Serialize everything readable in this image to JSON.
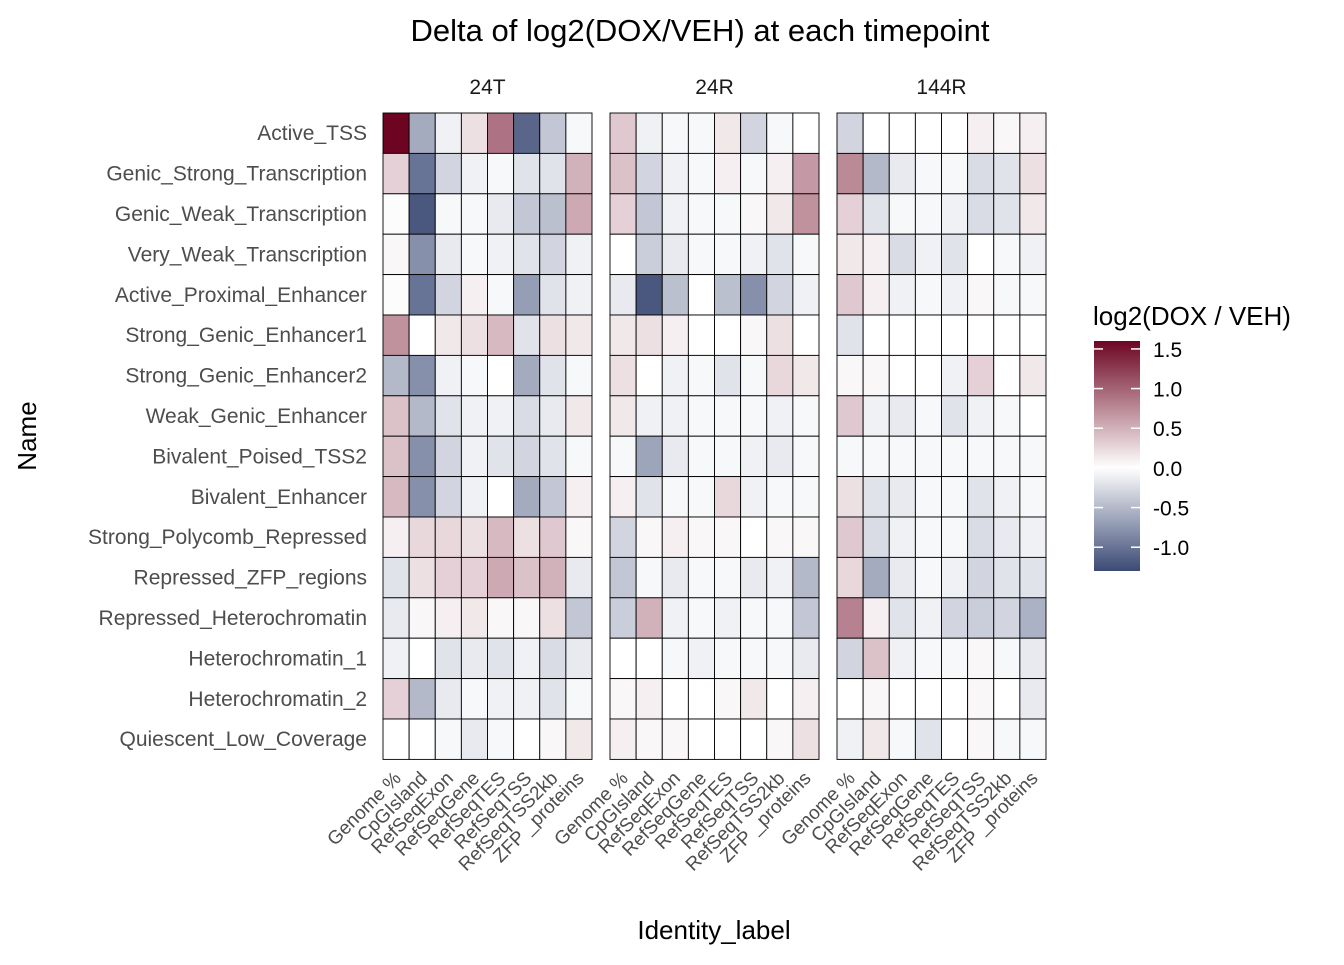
{
  "chart_data": {
    "type": "heatmap",
    "title": "Delta of log2(DOX/VEH) at each timepoint",
    "xlabel": "Identity_label",
    "ylabel": "Name",
    "legend": {
      "title": "log2(DOX / VEH)",
      "position": "right",
      "ticks": [
        1.5,
        1.0,
        0.5,
        0.0,
        -0.5,
        -1.0
      ],
      "tick_labels": [
        "1.5",
        "1.0",
        "0.5",
        "0.0",
        "-0.5",
        "-1.0"
      ],
      "range": [
        -1.3,
        1.6
      ]
    },
    "colors": {
      "low": "#3b4a75",
      "mid": "#ffffff",
      "high": "#6d0522"
    },
    "facets": [
      "24T",
      "24R",
      "144R"
    ],
    "x_categories": [
      "Genome %",
      "CpGIsland",
      "RefSeqExon",
      "RefSeqGene",
      "RefSeqTES",
      "RefSeqTSS",
      "RefSeqTSS2kb",
      "ZFP _proteins"
    ],
    "y_categories": [
      "Active_TSS",
      "Genic_Strong_Transcription",
      "Genic_Weak_Transcription",
      "Very_Weak_Transcription",
      "Active_Proximal_Enhancer",
      "Strong_Genic_Enhancer1",
      "Strong_Genic_Enhancer2",
      "Weak_Genic_Enhancer",
      "Bivalent_Poised_TSS2",
      "Bivalent_Enhancer",
      "Strong_Polycomb_Repressed",
      "Repressed_ZFP_regions",
      "Repressed_Heterochromatin",
      "Heterochromatin_1",
      "Heterochromatin_2",
      "Quiescent_Low_Coverage"
    ],
    "values": {
      "24T": [
        [
          1.6,
          -0.6,
          -0.1,
          0.2,
          0.9,
          -1.1,
          -0.4,
          -0.05
        ],
        [
          0.3,
          -1.0,
          -0.3,
          -0.1,
          -0.05,
          -0.2,
          -0.2,
          0.5
        ],
        [
          0.02,
          -1.2,
          -0.05,
          -0.05,
          -0.15,
          -0.4,
          -0.45,
          0.55
        ],
        [
          0.05,
          -0.8,
          -0.15,
          -0.05,
          -0.1,
          -0.2,
          -0.3,
          -0.1
        ],
        [
          0.02,
          -1.0,
          -0.3,
          0.1,
          -0.05,
          -0.7,
          -0.2,
          -0.1
        ],
        [
          0.7,
          0.0,
          0.15,
          0.2,
          0.45,
          -0.2,
          0.2,
          0.15
        ],
        [
          -0.5,
          -0.8,
          -0.1,
          -0.05,
          0.0,
          -0.6,
          -0.2,
          -0.05
        ],
        [
          0.4,
          -0.5,
          -0.2,
          -0.1,
          -0.1,
          -0.25,
          -0.15,
          0.15
        ],
        [
          0.4,
          -0.8,
          -0.3,
          -0.1,
          -0.2,
          -0.3,
          -0.2,
          -0.05
        ],
        [
          0.45,
          -0.8,
          -0.3,
          -0.1,
          0.0,
          -0.6,
          -0.4,
          0.1
        ],
        [
          0.1,
          0.25,
          0.25,
          0.2,
          0.45,
          0.2,
          0.35,
          0.05
        ],
        [
          -0.2,
          0.2,
          0.3,
          0.3,
          0.55,
          0.4,
          0.5,
          -0.15
        ],
        [
          -0.15,
          0.05,
          0.1,
          0.15,
          0.05,
          0.05,
          0.2,
          -0.4
        ],
        [
          -0.1,
          0.0,
          -0.2,
          -0.15,
          -0.2,
          -0.1,
          -0.25,
          -0.15
        ],
        [
          0.3,
          -0.5,
          -0.15,
          -0.05,
          -0.1,
          -0.1,
          -0.2,
          -0.05
        ],
        [
          0.0,
          0.0,
          -0.05,
          -0.15,
          -0.05,
          0.0,
          0.05,
          0.15
        ]
      ],
      "24R": [
        [
          0.35,
          -0.1,
          -0.05,
          -0.05,
          0.15,
          -0.3,
          -0.05,
          0.0
        ],
        [
          0.4,
          -0.3,
          -0.1,
          -0.05,
          0.1,
          -0.05,
          0.1,
          0.65
        ],
        [
          0.3,
          -0.4,
          -0.1,
          -0.05,
          -0.05,
          0.05,
          0.15,
          0.7
        ],
        [
          0.0,
          -0.35,
          -0.15,
          -0.05,
          -0.05,
          -0.1,
          -0.2,
          -0.05
        ],
        [
          -0.15,
          -1.2,
          -0.45,
          0.0,
          -0.45,
          -0.8,
          -0.3,
          -0.1
        ],
        [
          0.15,
          0.2,
          0.1,
          0.0,
          0.0,
          0.05,
          0.2,
          0.0
        ],
        [
          0.2,
          0.0,
          -0.1,
          -0.05,
          -0.2,
          -0.05,
          0.25,
          0.15
        ],
        [
          0.15,
          -0.1,
          -0.1,
          -0.05,
          -0.05,
          -0.05,
          -0.1,
          -0.05
        ],
        [
          -0.05,
          -0.65,
          -0.15,
          -0.05,
          -0.05,
          -0.1,
          -0.15,
          -0.05
        ],
        [
          0.1,
          -0.2,
          -0.05,
          -0.05,
          0.25,
          -0.1,
          -0.05,
          -0.05
        ],
        [
          -0.3,
          0.05,
          0.1,
          0.05,
          0.05,
          0.0,
          0.05,
          0.05
        ],
        [
          -0.4,
          -0.05,
          -0.15,
          -0.05,
          -0.05,
          -0.15,
          -0.1,
          -0.5
        ],
        [
          -0.35,
          0.5,
          -0.1,
          -0.05,
          -0.1,
          -0.05,
          -0.05,
          -0.4
        ],
        [
          0.0,
          0.0,
          -0.05,
          -0.1,
          -0.05,
          -0.05,
          -0.05,
          -0.15
        ],
        [
          0.05,
          0.1,
          0.0,
          0.0,
          0.05,
          0.15,
          0.0,
          0.1
        ],
        [
          0.1,
          0.05,
          0.05,
          0.0,
          0.0,
          0.0,
          0.05,
          0.2
        ]
      ],
      "144R": [
        [
          -0.3,
          0.0,
          0.0,
          0.0,
          0.0,
          0.1,
          0.05,
          0.1
        ],
        [
          0.75,
          -0.5,
          -0.15,
          -0.05,
          -0.05,
          -0.25,
          -0.2,
          0.2
        ],
        [
          0.3,
          -0.2,
          -0.05,
          -0.05,
          -0.1,
          -0.25,
          -0.2,
          0.15
        ],
        [
          0.15,
          0.1,
          -0.25,
          -0.1,
          -0.2,
          0.0,
          -0.05,
          -0.1
        ],
        [
          0.35,
          0.1,
          -0.1,
          -0.05,
          -0.1,
          0.05,
          -0.05,
          -0.05
        ],
        [
          -0.2,
          0.0,
          0.0,
          0.0,
          0.0,
          0.0,
          0.0,
          0.0
        ],
        [
          0.05,
          0.05,
          0.0,
          0.0,
          -0.1,
          0.3,
          0.0,
          0.15
        ],
        [
          0.35,
          -0.1,
          -0.15,
          -0.05,
          -0.2,
          -0.1,
          -0.05,
          0.0
        ],
        [
          -0.05,
          -0.05,
          -0.05,
          -0.05,
          -0.05,
          -0.05,
          -0.05,
          -0.05
        ],
        [
          0.2,
          -0.2,
          -0.15,
          -0.05,
          -0.05,
          -0.2,
          -0.1,
          -0.05
        ],
        [
          0.35,
          -0.25,
          -0.1,
          -0.05,
          -0.05,
          -0.25,
          -0.15,
          -0.1
        ],
        [
          0.25,
          -0.6,
          -0.15,
          -0.05,
          -0.1,
          -0.3,
          -0.2,
          -0.2
        ],
        [
          0.8,
          0.1,
          -0.2,
          -0.1,
          -0.3,
          -0.35,
          -0.3,
          -0.55
        ],
        [
          -0.3,
          0.4,
          -0.1,
          -0.05,
          -0.05,
          0.05,
          -0.05,
          -0.15
        ],
        [
          0.0,
          0.05,
          0.0,
          0.0,
          0.0,
          0.05,
          0.0,
          -0.15
        ],
        [
          -0.1,
          0.15,
          -0.05,
          -0.2,
          0.0,
          0.05,
          -0.05,
          -0.05
        ]
      ]
    }
  }
}
